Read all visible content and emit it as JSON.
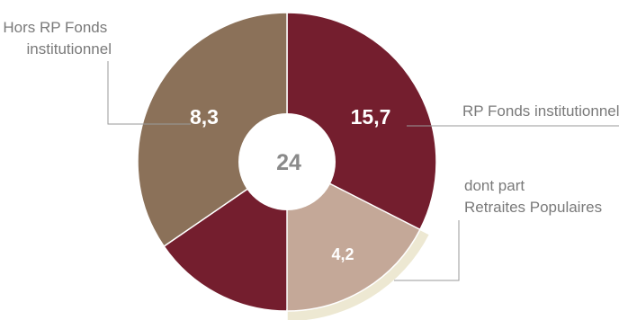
{
  "chart_data": {
    "type": "pie",
    "variant": "donut",
    "total": 24,
    "total_label": "24",
    "slices": [
      {
        "label": "RP Fonds institutionnel",
        "value": 15.7,
        "value_label": "15,7",
        "color": "#741e2e"
      },
      {
        "label": "Hors RP Fonds institutionnel",
        "value": 8.3,
        "value_label": "8,3",
        "color": "#8b7159"
      }
    ],
    "sub_slice": {
      "parent": "RP Fonds institutionnel",
      "label": "dont part Retraites Populaires",
      "value": 4.2,
      "value_label": "4,2",
      "color": "#c4a898",
      "accent_color": "#ede8d2"
    },
    "annotations": {
      "left": [
        "Hors RP Fonds",
        "institutionnel"
      ],
      "right_top": "RP Fonds institutionnel",
      "right_bottom": [
        "dont part",
        "Retraites Populaires"
      ]
    }
  }
}
